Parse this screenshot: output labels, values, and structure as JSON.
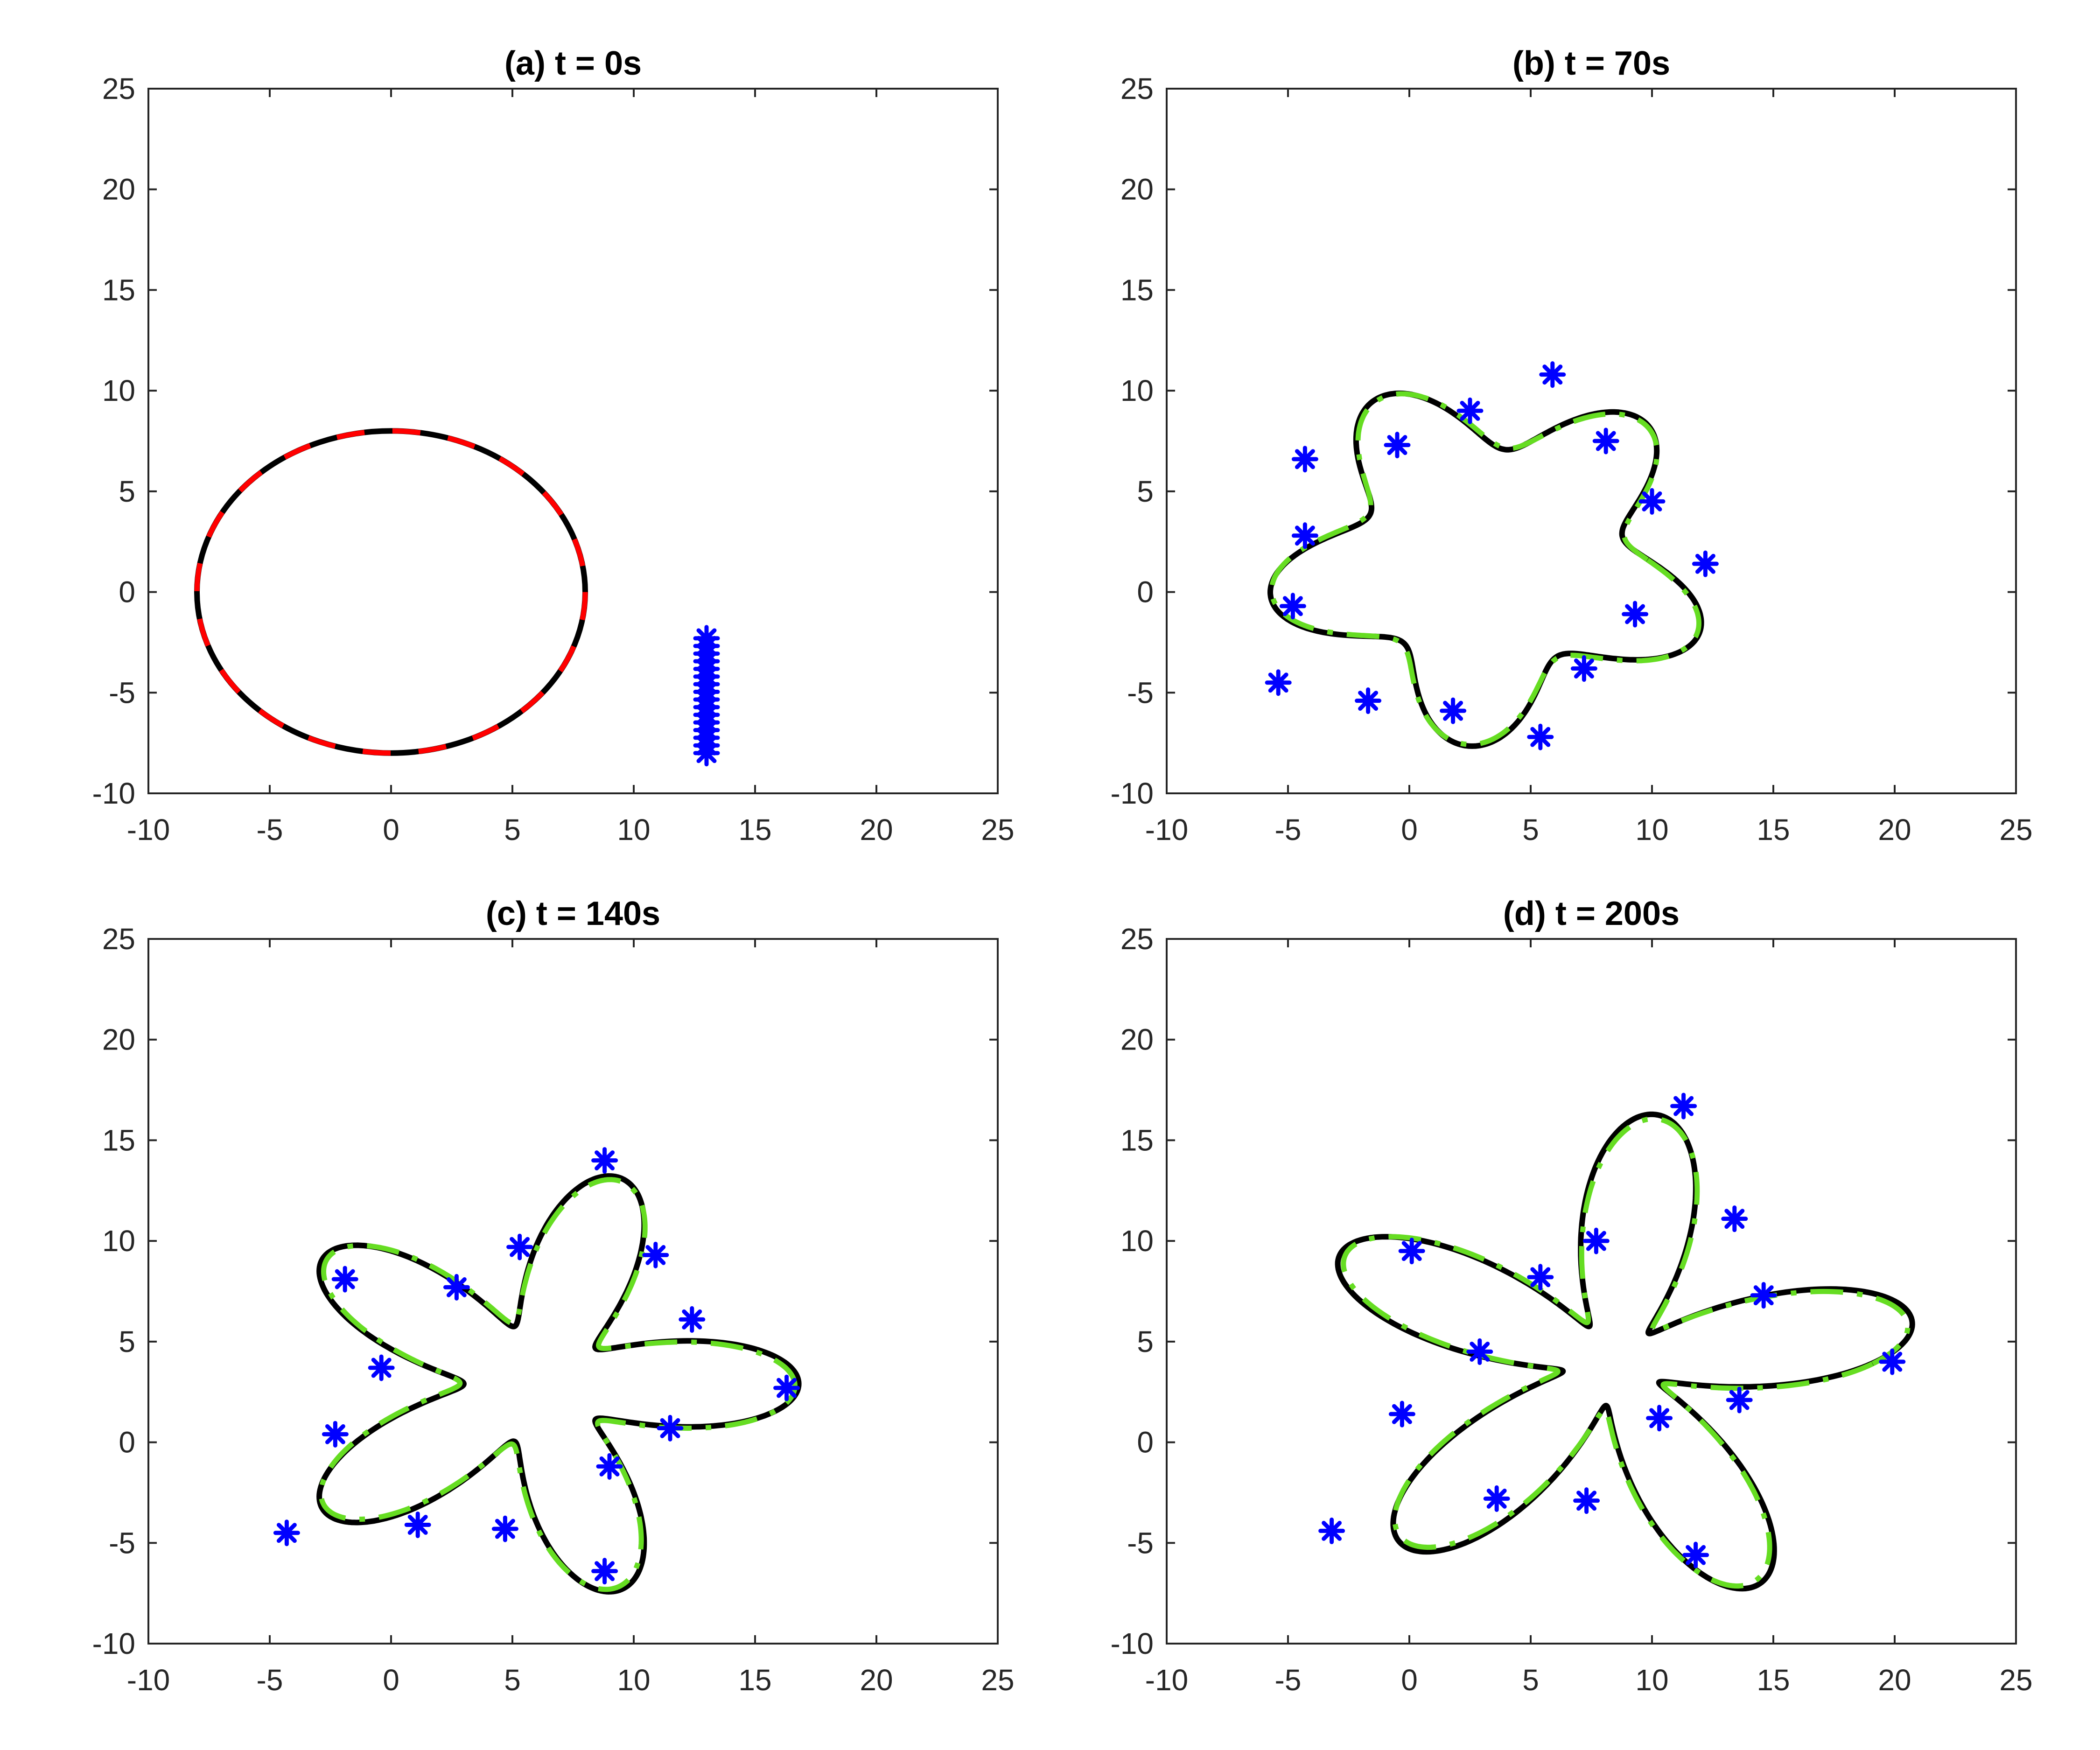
{
  "chart_data": [
    {
      "type": "line",
      "title": "(a) t = 0s",
      "xlim": [
        -10,
        25
      ],
      "ylim": [
        -10,
        25
      ],
      "xticks": [
        -10,
        -5,
        0,
        5,
        10,
        15,
        20,
        25
      ],
      "yticks": [
        -10,
        -5,
        0,
        5,
        10,
        15,
        20,
        25
      ],
      "grid": false,
      "colors": {
        "reference": "#000000",
        "formation": "#ff0000",
        "agents": "#0000ff"
      },
      "curves": {
        "circle": {
          "center": [
            0,
            0
          ],
          "radius": 8
        },
        "agents_column": {
          "x": 13,
          "y_from": -8,
          "y_to": -2.3,
          "count": 16
        }
      }
    },
    {
      "type": "line",
      "title": "(b) t = 70s",
      "xlim": [
        -10,
        25
      ],
      "ylim": [
        -10,
        25
      ],
      "xticks": [
        -10,
        -5,
        0,
        5,
        10,
        15,
        20,
        25
      ],
      "yticks": [
        -10,
        -5,
        0,
        5,
        10,
        15,
        20,
        25
      ],
      "grid": false,
      "colors": {
        "reference": "#000000",
        "estimate": "#66dd22",
        "agents": "#0000ff"
      },
      "shape": {
        "center": [
          3.4,
          1.6
        ],
        "base_radius": 7.4,
        "lobes": 5,
        "amplitude": 1.9,
        "phase_deg": 48,
        "agents": [
          [
            5.9,
            10.8
          ],
          [
            8.1,
            7.5
          ],
          [
            10.0,
            4.5
          ],
          [
            12.2,
            1.4
          ],
          [
            9.3,
            -1.1
          ],
          [
            7.2,
            -3.8
          ],
          [
            5.4,
            -7.2
          ],
          [
            1.8,
            -5.9
          ],
          [
            -1.7,
            -5.4
          ],
          [
            -5.4,
            -4.5
          ],
          [
            -4.8,
            -0.7
          ],
          [
            -4.3,
            2.8
          ],
          [
            -4.3,
            6.6
          ],
          [
            -0.5,
            7.3
          ],
          [
            2.5,
            9.0
          ]
        ]
      }
    },
    {
      "type": "line",
      "title": "(c) t = 140s",
      "xlim": [
        -10,
        25
      ],
      "ylim": [
        -10,
        25
      ],
      "xticks": [
        -10,
        -5,
        0,
        5,
        10,
        15,
        20,
        25
      ],
      "yticks": [
        -10,
        -5,
        0,
        5,
        10,
        15,
        20,
        25
      ],
      "grid": false,
      "colors": {
        "reference": "#000000",
        "estimate": "#66dd22",
        "agents": "#0000ff"
      },
      "shape": {
        "center": [
          6.0,
          2.9
        ],
        "base_radius": 6.9,
        "lobes": 5,
        "amplitude": 3.9,
        "phase_deg": 72,
        "agents": [
          [
            8.8,
            14.0
          ],
          [
            10.9,
            9.3
          ],
          [
            12.4,
            6.1
          ],
          [
            16.3,
            2.7
          ],
          [
            11.5,
            0.7
          ],
          [
            9.0,
            -1.2
          ],
          [
            8.8,
            -6.4
          ],
          [
            4.7,
            -4.3
          ],
          [
            1.1,
            -4.1
          ],
          [
            -4.3,
            -4.5
          ],
          [
            -2.3,
            0.4
          ],
          [
            -0.4,
            3.7
          ],
          [
            -1.9,
            8.1
          ],
          [
            2.7,
            7.7
          ],
          [
            5.3,
            9.7
          ]
        ]
      }
    },
    {
      "type": "line",
      "title": "(d) t = 200s",
      "xlim": [
        -10,
        25
      ],
      "ylim": [
        -10,
        25
      ],
      "xticks": [
        -10,
        -5,
        0,
        5,
        10,
        15,
        20,
        25
      ],
      "yticks": [
        -10,
        -5,
        0,
        5,
        10,
        15,
        20,
        25
      ],
      "grid": false,
      "colors": {
        "reference": "#000000",
        "estimate": "#66dd22",
        "agents": "#0000ff"
      },
      "shape": {
        "center": [
          8.4,
          3.9
        ],
        "base_radius": 7.3,
        "lobes": 5,
        "amplitude": 5.2,
        "phase_deg": 82,
        "agents": [
          [
            11.3,
            16.7
          ],
          [
            13.4,
            11.1
          ],
          [
            14.6,
            7.3
          ],
          [
            19.9,
            4.0
          ],
          [
            13.6,
            2.1
          ],
          [
            10.3,
            1.2
          ],
          [
            11.8,
            -5.6
          ],
          [
            7.3,
            -2.9
          ],
          [
            3.6,
            -2.8
          ],
          [
            -3.2,
            -4.4
          ],
          [
            -0.3,
            1.4
          ],
          [
            2.9,
            4.5
          ],
          [
            0.1,
            9.5
          ],
          [
            5.4,
            8.2
          ],
          [
            7.7,
            10.0
          ]
        ]
      }
    }
  ]
}
